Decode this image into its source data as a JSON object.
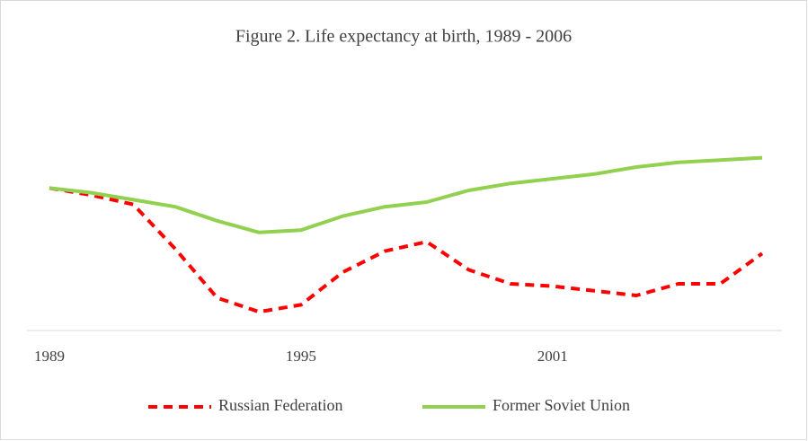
{
  "chart_data": {
    "type": "line",
    "title": "Figure 2. Life expectancy at birth, 1989 - 2006",
    "x": [
      1989,
      1990,
      1991,
      1992,
      1993,
      1994,
      1995,
      1996,
      1997,
      1998,
      1999,
      2000,
      2001,
      2002,
      2003,
      2004,
      2005,
      2006
    ],
    "series": [
      {
        "name": "Russian Federation",
        "color": "#ff0000",
        "dashed": true,
        "values": [
          69.1,
          68.8,
          68.4,
          66.5,
          64.4,
          63.8,
          64.1,
          65.5,
          66.4,
          66.8,
          65.6,
          65.0,
          64.9,
          64.7,
          64.5,
          65.0,
          65.0,
          66.3
        ]
      },
      {
        "name": "Former Soviet Union",
        "color": "#92d050",
        "dashed": false,
        "values": [
          69.1,
          68.9,
          68.6,
          68.3,
          67.7,
          67.2,
          67.3,
          67.9,
          68.3,
          68.5,
          69.0,
          69.3,
          69.5,
          69.7,
          70.0,
          70.2,
          70.3,
          70.4
        ]
      }
    ],
    "xlim": [
      1989,
      2006
    ],
    "xticks": [
      1989,
      1995,
      2001
    ],
    "ylim": [
      63,
      73
    ],
    "legend": "bottom"
  }
}
